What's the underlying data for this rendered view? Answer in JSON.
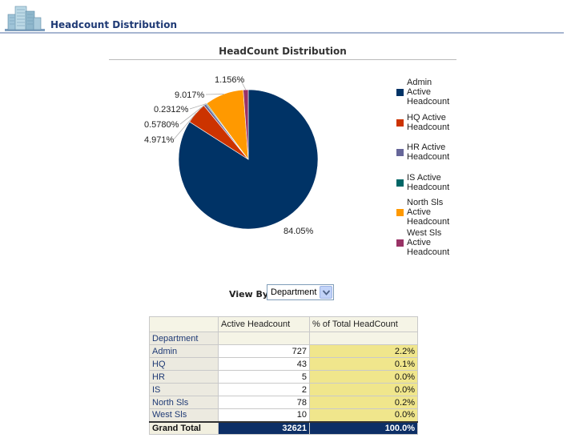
{
  "header": {
    "title": "Headcount Distribution",
    "logo_icon": "buildings-icon"
  },
  "chart_data": {
    "type": "pie",
    "title": "HeadCount Distribution",
    "legend_placement": "right",
    "slices": [
      {
        "name": "Admin Active Headcount",
        "value": 84.05,
        "label": "84.05%",
        "color": "#003366"
      },
      {
        "name": "HQ Active Headcount",
        "value": 4.971,
        "label": "4.971%",
        "color": "#cc3300"
      },
      {
        "name": "HR Active Headcount",
        "value": 0.578,
        "label": "0.5780%",
        "color": "#666699"
      },
      {
        "name": "IS Active Headcount",
        "value": 0.2312,
        "label": "0.2312%",
        "color": "#006666"
      },
      {
        "name": "North Sls Active Headcount",
        "value": 9.017,
        "label": "9.017%",
        "color": "#ff9900"
      },
      {
        "name": "West Sls Active Headcount",
        "value": 1.156,
        "label": "1.156%",
        "color": "#993366"
      }
    ]
  },
  "view_by": {
    "label": "View By",
    "selected": "Department"
  },
  "table": {
    "columns": [
      "",
      "Active Headcount",
      "% of Total HeadCount"
    ],
    "row_header": "Department",
    "rows": [
      {
        "dept": "Admin",
        "active": "727",
        "pct": "2.2%"
      },
      {
        "dept": "HQ",
        "active": "43",
        "pct": "0.1%"
      },
      {
        "dept": "HR",
        "active": "5",
        "pct": "0.0%"
      },
      {
        "dept": "IS",
        "active": "2",
        "pct": "0.0%"
      },
      {
        "dept": "North Sls",
        "active": "78",
        "pct": "0.2%"
      },
      {
        "dept": "West Sls",
        "active": "10",
        "pct": "0.0%"
      }
    ],
    "total": {
      "label": "Grand Total",
      "active": "32621",
      "pct": "100.0%"
    }
  }
}
